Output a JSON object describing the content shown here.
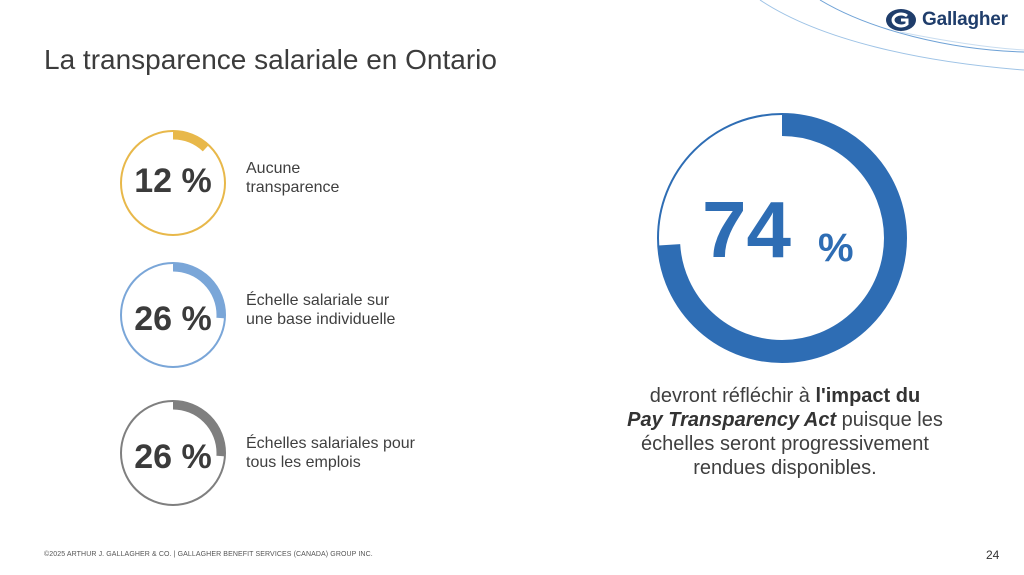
{
  "brand": {
    "name": "Gallagher",
    "colors": {
      "accent": "#2e6db4",
      "navy": "#1f3d6b"
    }
  },
  "title": "La transparence salariale en Ontario",
  "stats": [
    {
      "value": 12,
      "label": "12 %",
      "description": "Aucune\ntransparence",
      "color": "#e8b84a"
    },
    {
      "value": 26,
      "label": "26 %",
      "description": "Échelle salariale sur\nune base individuelle",
      "color": "#7aa6d8"
    },
    {
      "value": 26,
      "label": "26 %",
      "description": "Échelles salariales pour\ntous les emplois",
      "color": "#7f7f7f"
    }
  ],
  "highlight": {
    "value": 74,
    "number": "74",
    "unit": "%",
    "color": "#2e6db4",
    "caption": {
      "part1": "devront réfléchir à ",
      "bold": "l'impact du",
      "italic": "Pay Transparency Act",
      "part2": "  puisque les échelles seront progressivement rendues disponibles."
    }
  },
  "footer": "©2025 ARTHUR J. GALLAGHER & CO. | GALLAGHER BENEFIT SERVICES (CANADA) GROUP INC.",
  "page_number": "24"
}
